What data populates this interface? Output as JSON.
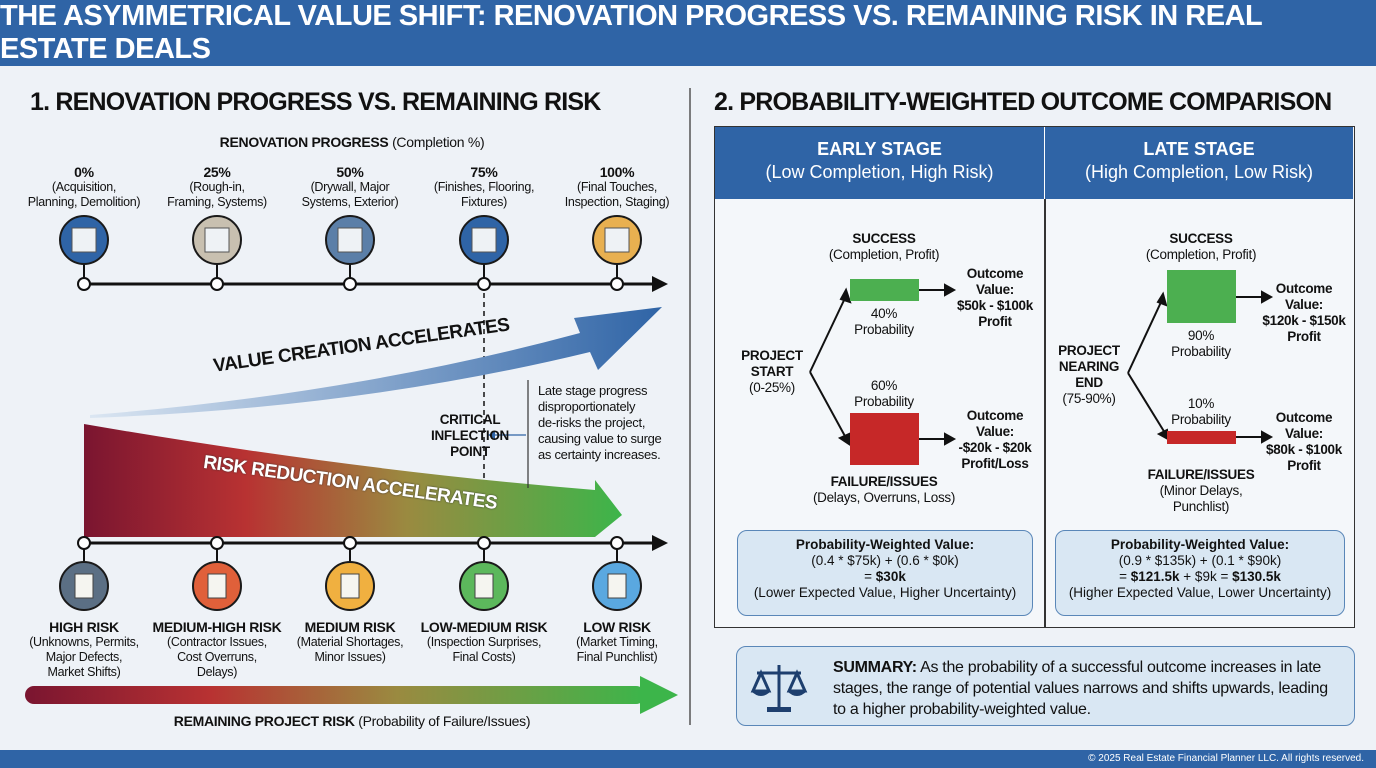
{
  "title": "THE ASYMMETRICAL VALUE SHIFT: RENOVATION PROGRESS VS. REMAINING RISK IN REAL ESTATE DEALS",
  "left": {
    "section_title": "1. RENOVATION PROGRESS VS. REMAINING RISK",
    "progress_axis": {
      "bold": "RENOVATION PROGRESS",
      "normal": "(Completion %)"
    },
    "stages": [
      {
        "pct": "0%",
        "l1": "(Acquisition,",
        "l2": "Planning, Demolition)",
        "icon": "demolition-icon"
      },
      {
        "pct": "25%",
        "l1": "(Rough-in,",
        "l2": "Framing, Systems)",
        "icon": "framing-icon"
      },
      {
        "pct": "50%",
        "l1": "(Drywall, Major",
        "l2": "Systems, Exterior)",
        "icon": "house-icon"
      },
      {
        "pct": "75%",
        "l1": "(Finishes, Flooring,",
        "l2": "Fixtures)",
        "icon": "room-finish-icon"
      },
      {
        "pct": "100%",
        "l1": "(Final Touches,",
        "l2": "Inspection, Staging)",
        "icon": "staged-room-icon"
      }
    ],
    "value_arrow_label": "VALUE CREATION ACCELERATES",
    "risk_wedge_label": "RISK REDUCTION ACCELERATES",
    "inflection": {
      "l1": "CRITICAL",
      "l2": "INFLECTION",
      "l3": "POINT"
    },
    "annotation": [
      "Late stage progress",
      "disproportionately",
      "de-risks the project,",
      "causing value to surge",
      "as certainty increases."
    ],
    "risks": [
      {
        "name": "HIGH RISK",
        "lines": [
          "(Unknowns, Permits,",
          "Major Defects,",
          "Market Shifts)"
        ],
        "icon": "storm-icon",
        "color": "#5b6f84"
      },
      {
        "name": "MEDIUM-HIGH RISK",
        "lines": [
          "(Contractor Issues,",
          "Cost Overruns,",
          "Delays)"
        ],
        "icon": "barrier-icon",
        "color": "#e0603a"
      },
      {
        "name": "MEDIUM RISK",
        "lines": [
          "(Material Shortages,",
          "Minor Issues)"
        ],
        "icon": "clipboard-icon",
        "color": "#f0b040"
      },
      {
        "name": "LOW-MEDIUM RISK",
        "lines": [
          "(Inspection Surprises,",
          "Final Costs)"
        ],
        "icon": "checklist-icon",
        "color": "#5cb85c"
      },
      {
        "name": "LOW RISK",
        "lines": [
          "(Market Timing,",
          "Final Punchlist)"
        ],
        "icon": "sun-cloud-icon",
        "color": "#5aa8e0"
      }
    ],
    "risk_axis": {
      "bold": "REMAINING PROJECT RISK",
      "normal": "(Probability of Failure/Issues)"
    }
  },
  "right": {
    "section_title": "2. PROBABILITY-WEIGHTED OUTCOME COMPARISON",
    "early": {
      "title": "EARLY STAGE",
      "subtitle": "(Low Completion, High Risk)",
      "start": [
        "PROJECT",
        "START",
        "(0-25%)"
      ],
      "success": {
        "title": "SUCCESS",
        "sub": "(Completion, Profit)",
        "prob": "40%",
        "prob_label": "Probability",
        "outcome": [
          "Outcome",
          "Value:",
          "$50k - $100k",
          "Profit"
        ]
      },
      "failure": {
        "title": "FAILURE/ISSUES",
        "sub": "(Delays, Overruns, Loss)",
        "prob": "60%",
        "prob_label": "Probability",
        "outcome": [
          "Outcome",
          "Value:",
          "-$20k - $20k",
          "Profit/Loss"
        ]
      },
      "pwv": {
        "title": "Probability-Weighted Value:",
        "formula": "(0.4 * $75k) + (0.6 * $0k)",
        "result_prefix": "= ",
        "result": "$30k",
        "note": "(Lower Expected Value, Higher Uncertainty)"
      }
    },
    "late": {
      "title": "LATE STAGE",
      "subtitle": "(High Completion, Low Risk)",
      "start": [
        "PROJECT",
        "NEARING",
        "END",
        "(75-90%)"
      ],
      "success": {
        "title": "SUCCESS",
        "sub": "(Completion, Profit)",
        "prob": "90%",
        "prob_label": "Probability",
        "outcome": [
          "Outcome",
          "Value:",
          "$120k - $150k",
          "Profit"
        ]
      },
      "failure": {
        "title": "FAILURE/ISSUES",
        "sub1": "(Minor Delays,",
        "sub2": "Punchlist)",
        "prob": "10%",
        "prob_label": "Probability",
        "outcome": [
          "Outcome",
          "Value:",
          "$80k - $100k",
          "Profit"
        ]
      },
      "pwv": {
        "title": "Probability-Weighted Value:",
        "formula": "(0.9 * $135k) + (0.1 * $90k)",
        "r1": "= ",
        "r2": "$121.5k",
        "r3": " + $9k = ",
        "r4": "$130.5k",
        "note": "(Higher Expected Value, Lower Uncertainty)"
      }
    },
    "summary": {
      "label": "SUMMARY:",
      "text": "As the probability of a successful outcome increases in late stages, the range of potential values narrows and shifts upwards, leading to a higher probability-weighted value.",
      "icon": "scales-icon"
    }
  },
  "footer": "© 2025 Real Estate Financial Planner LLC. All rights reserved."
}
